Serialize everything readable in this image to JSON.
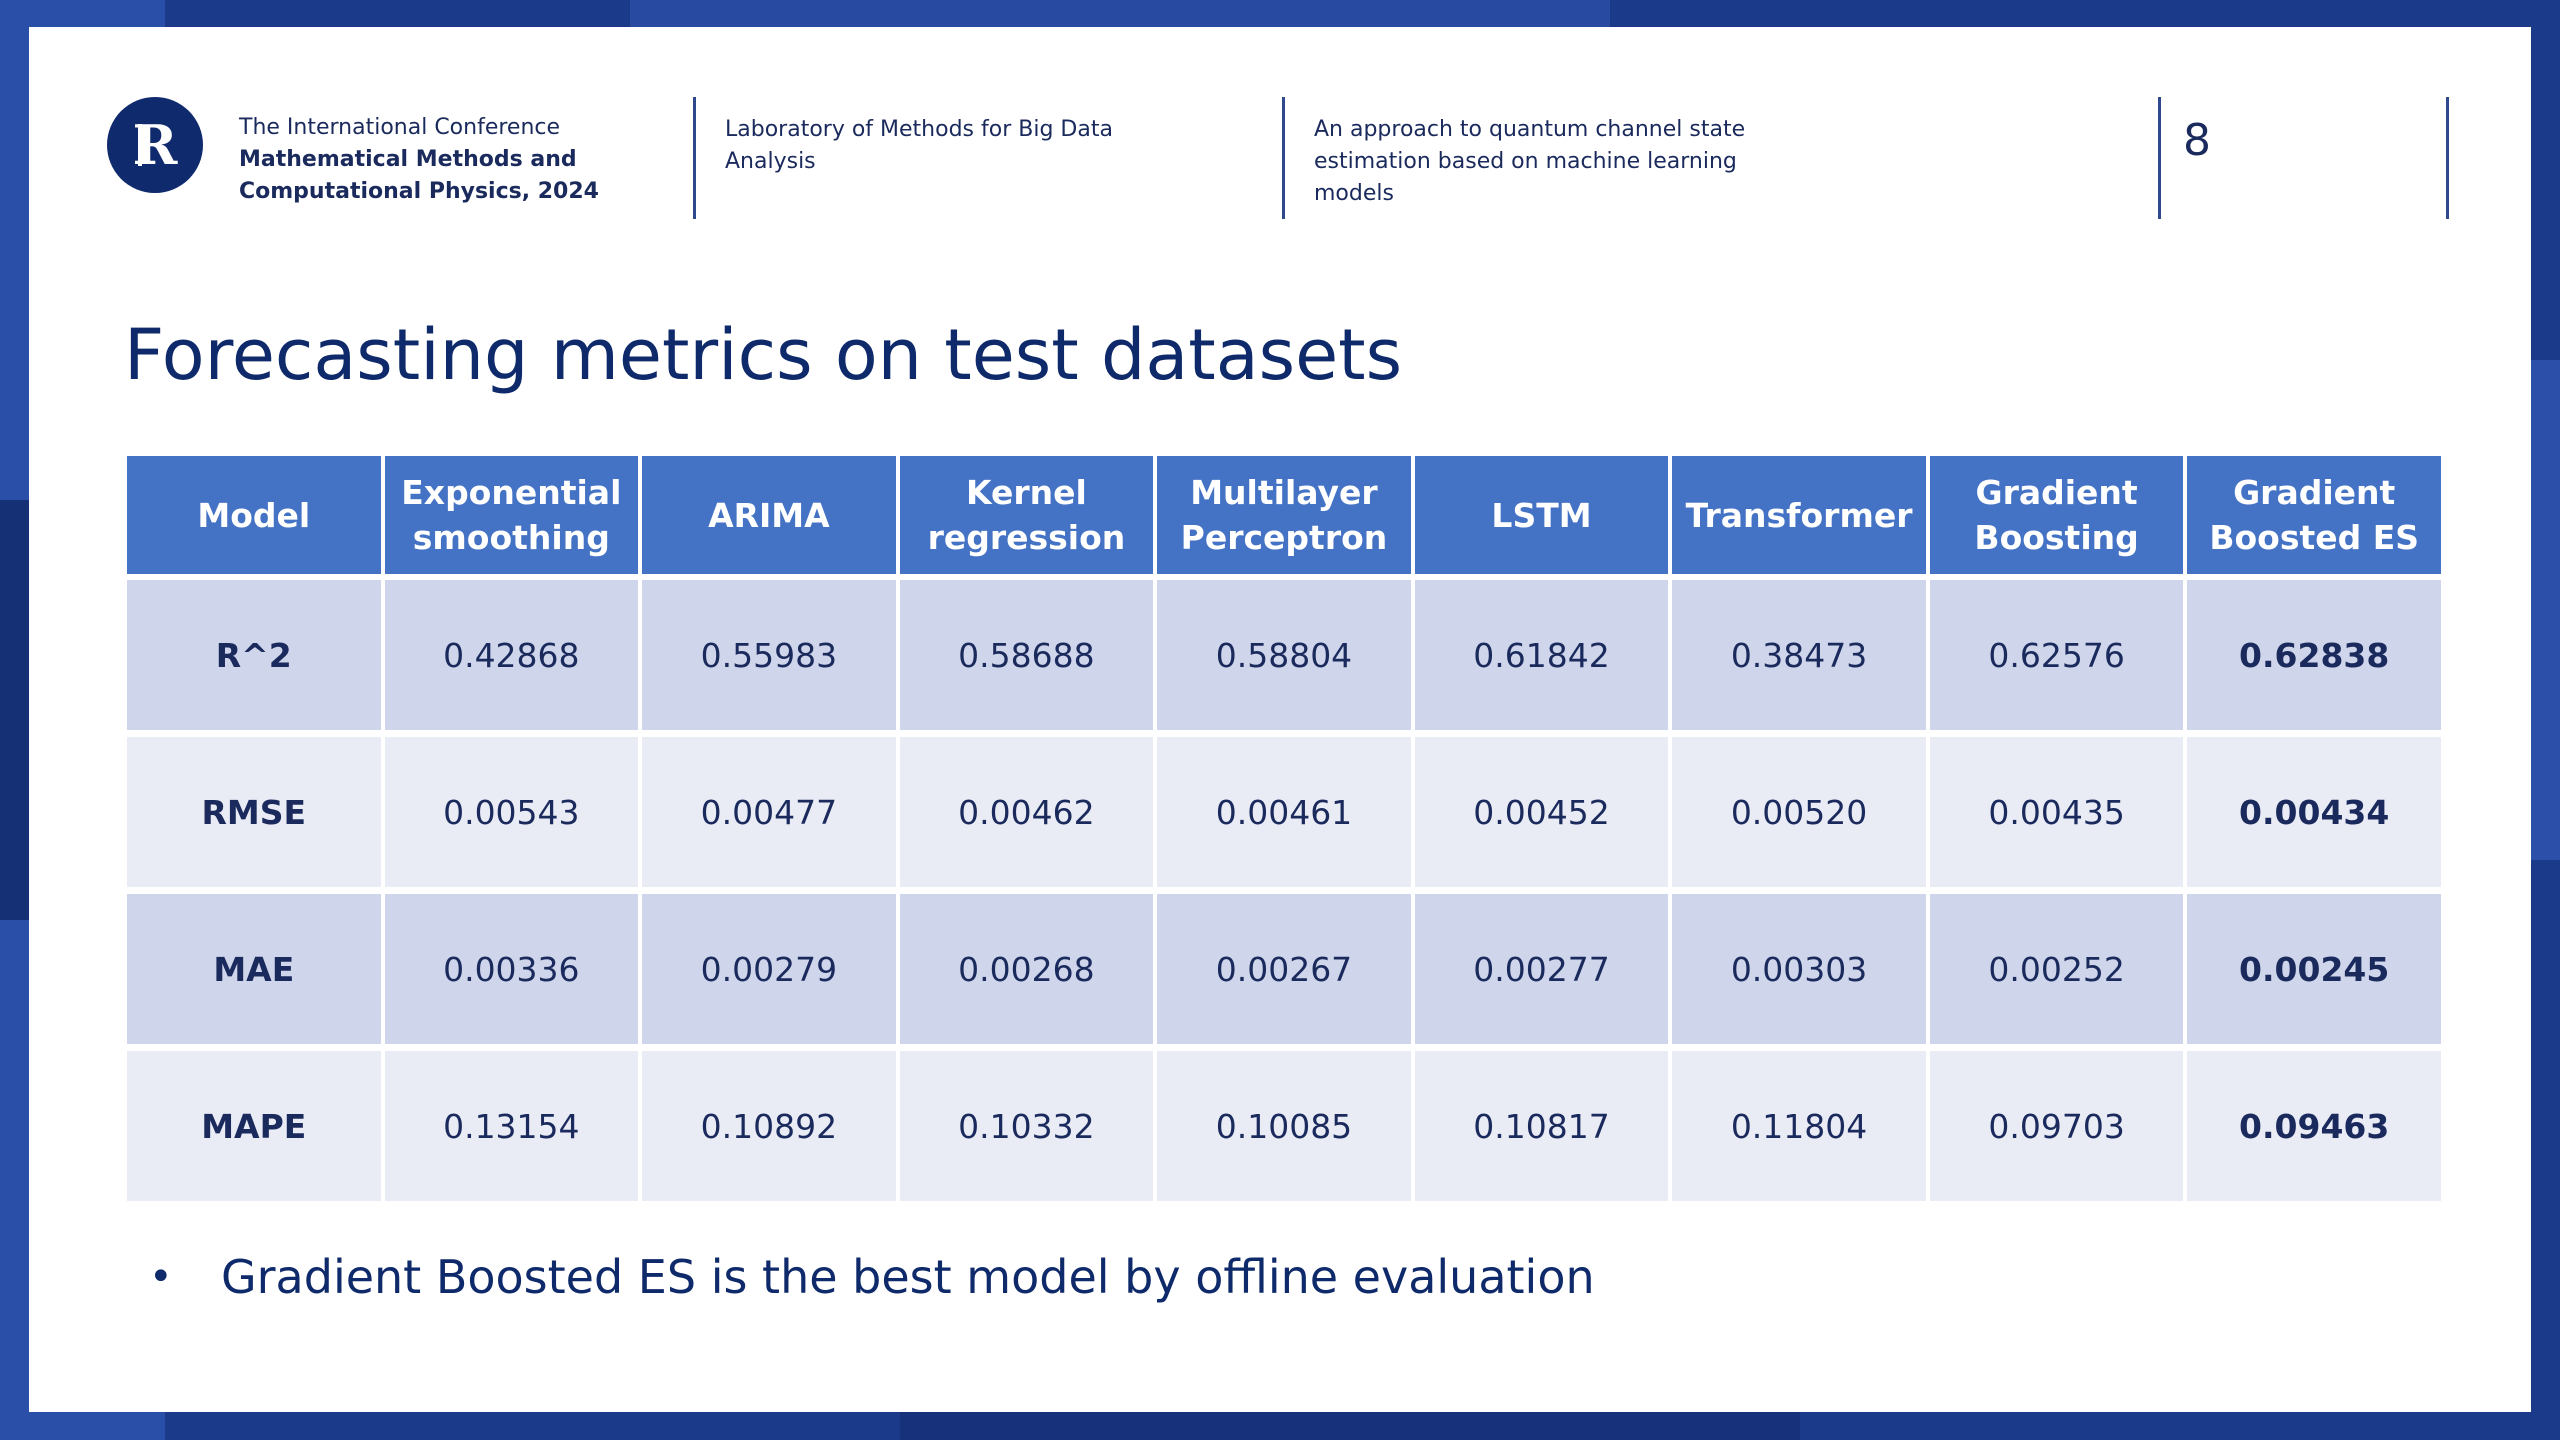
{
  "header": {
    "conference_line1": "The International Conference",
    "conference_line2": "Mathematical Methods and",
    "conference_line3": "Computational Physics, 2024",
    "laboratory": "Laboratory of Methods for Big Data Analysis",
    "topic": "An approach to quantum channel state estimation based on machine learning models",
    "page_number": "8"
  },
  "logo": {
    "letter": "R",
    "color": "#102a6e"
  },
  "title": "Forecasting metrics on test datasets",
  "table": {
    "headers": [
      "Model",
      "Exponential smoothing",
      "ARIMA",
      "Kernel regression",
      "Multilayer Perceptron",
      "LSTM",
      "Transformer",
      "Gradient Boosting",
      "Gradient Boosted ES"
    ],
    "rows": [
      {
        "metric": "R^2",
        "values": [
          "0.42868",
          "0.55983",
          "0.58688",
          "0.58804",
          "0.61842",
          "0.38473",
          "0.62576"
        ],
        "best": "0.62838"
      },
      {
        "metric": "RMSE",
        "values": [
          "0.00543",
          "0.00477",
          "0.00462",
          "0.00461",
          "0.00452",
          "0.00520",
          "0.00435"
        ],
        "best": "0.00434"
      },
      {
        "metric": "MAE",
        "values": [
          "0.00336",
          "0.00279",
          "0.00268",
          "0.00267",
          "0.00277",
          "0.00303",
          "0.00252"
        ],
        "best": "0.00245"
      },
      {
        "metric": "MAPE",
        "values": [
          "0.13154",
          "0.10892",
          "0.10332",
          "0.10085",
          "0.10817",
          "0.11804",
          "0.09703"
        ],
        "best": "0.09463"
      }
    ]
  },
  "bullet": {
    "symbol": "•",
    "text": "Gradient Boosted ES is the best model by offline evaluation"
  },
  "colors": {
    "header_bg": "#4472c4",
    "row_odd": "#cfd5ea",
    "row_even": "#e9ebf5",
    "text": "#1a2a5c",
    "title": "#0e2a6a"
  }
}
